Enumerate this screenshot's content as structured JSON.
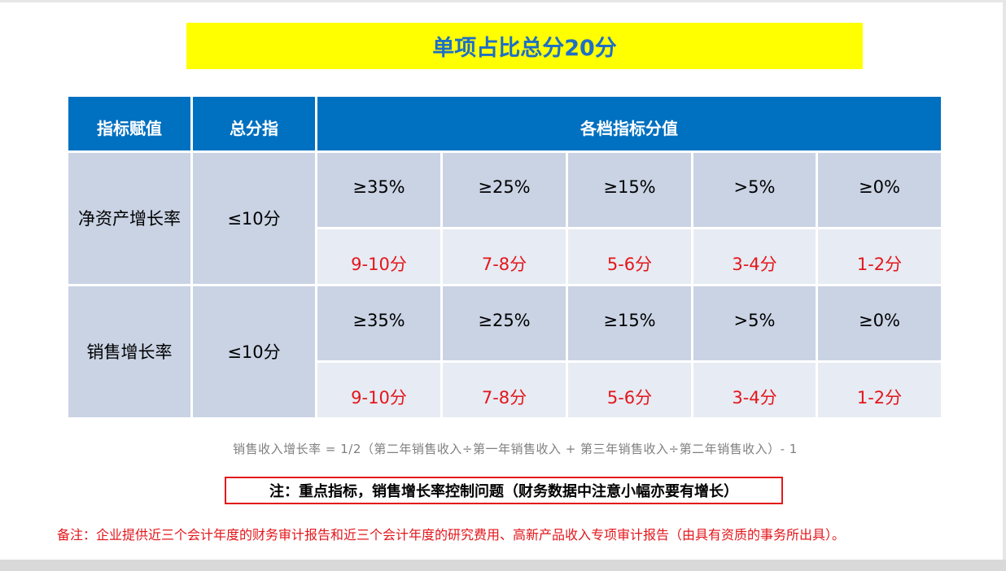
{
  "title": "单项占比总分20分",
  "table": {
    "headers": {
      "indicator": "指标赋值",
      "total": "总分指",
      "tiers": "各档指标分值"
    },
    "rows": [
      {
        "label": "净资产增长率",
        "total": "≤10分",
        "thresholds": [
          "≥35%",
          "≥25%",
          "≥15%",
          ">5%",
          "≥0%"
        ],
        "points": [
          "9-10分",
          "7-8分",
          "5-6分",
          "3-4分",
          "1-2分"
        ]
      },
      {
        "label": "销售增长率",
        "total": "≤10分",
        "thresholds": [
          "≥35%",
          "≥25%",
          "≥15%",
          ">5%",
          "≥0%"
        ],
        "points": [
          "9-10分",
          "7-8分",
          "5-6分",
          "3-4分",
          "1-2分"
        ]
      }
    ]
  },
  "formula": "销售收入增长率 = 1/2（第二年销售收入÷第一年销售收入 + 第三年销售收入÷第二年销售收入）- 1",
  "notice": "注：重点指标，销售增长率控制问题（财务数据中注意小幅亦要有增长）",
  "remark": "备注：企业提供近三个会计年度的财务审计报告和近三个会计年度的研究费用、高新产品收入专项审计报告（由具有资质的事务所出具）。",
  "colors": {
    "header_blue": "#0070c0",
    "banner_yellow": "#ffff00",
    "title_blue": "#1f6fc5",
    "points_red": "#e3161b"
  }
}
